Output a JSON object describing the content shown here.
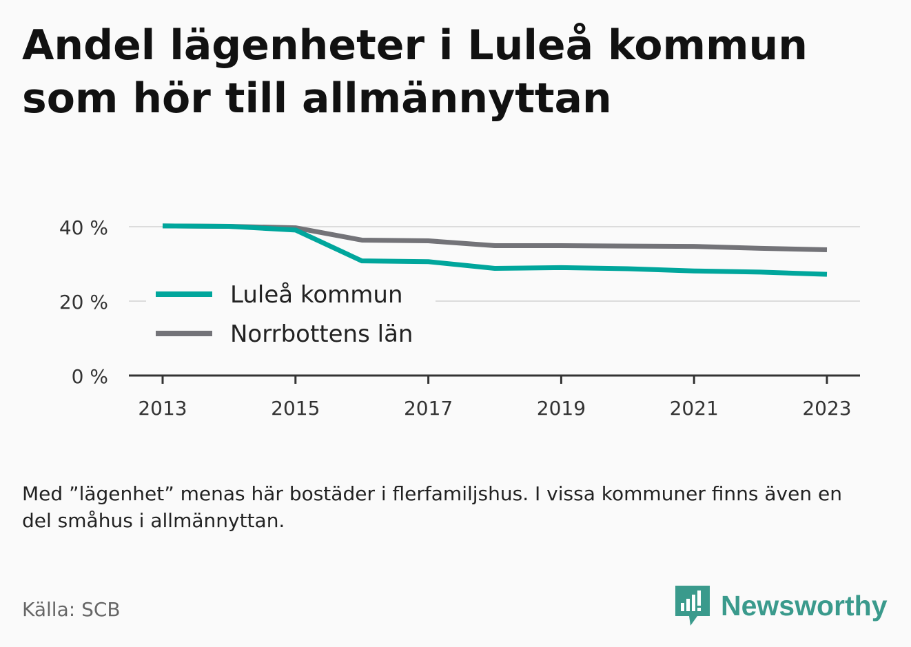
{
  "title": "Andel lägenheter i Luleå kommun som hör till allmännyttan",
  "note": "Med ”lägenhet” menas här bostäder i flerfamiljshus. I vissa kommuner finns även en del småhus i allmännyttan.",
  "source": "Källa: SCB",
  "brand": {
    "name": "Newsworthy",
    "icon": "newsworthy-logo-icon",
    "color": "#3a9a8c"
  },
  "chart_data": {
    "type": "line",
    "x": [
      2013,
      2014,
      2015,
      2016,
      2017,
      2018,
      2019,
      2020,
      2021,
      2022,
      2023
    ],
    "xticks": [
      2013,
      2015,
      2017,
      2019,
      2021,
      2023
    ],
    "ylim": [
      0,
      40
    ],
    "yticks": [
      0,
      20,
      40
    ],
    "ytick_labels": [
      "0 %",
      "20 %",
      "40 %"
    ],
    "grid": true,
    "legend_position": "left",
    "series": [
      {
        "name": "Luleå kommun",
        "color": "#00a69c",
        "values": [
          40.2,
          40.1,
          39.1,
          30.8,
          30.6,
          28.8,
          29.0,
          28.7,
          28.1,
          27.8,
          27.2
        ]
      },
      {
        "name": "Norrbottens län",
        "color": "#737378",
        "values": [
          40.2,
          40.1,
          39.7,
          36.4,
          36.2,
          34.9,
          34.9,
          34.8,
          34.7,
          34.2,
          33.8
        ]
      }
    ]
  }
}
